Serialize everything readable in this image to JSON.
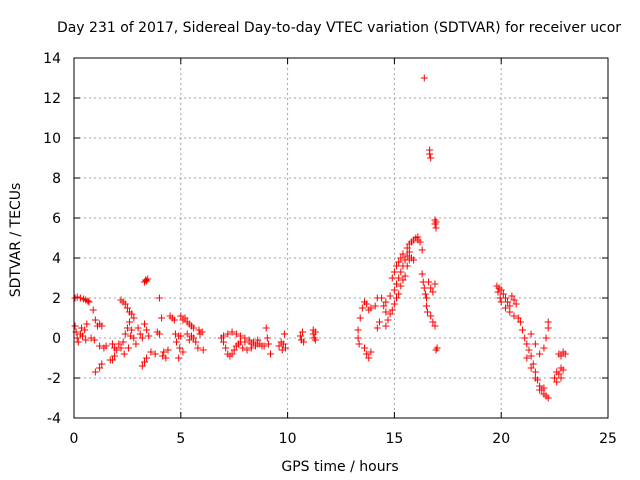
{
  "chart_data": {
    "type": "scatter",
    "title": "Day 231 of 2017, Sidereal Day-to-day VTEC variation (SDTVAR) for receiver ucor",
    "xlabel": "GPS time / hours",
    "ylabel": "SDTVAR / TECUs",
    "xlim": [
      0,
      25
    ],
    "ylim": [
      -4,
      14
    ],
    "xticks": [
      "0",
      "5",
      "10",
      "15",
      "20",
      "25"
    ],
    "yticks": [
      "-4",
      "-2",
      "0",
      "2",
      "4",
      "6",
      "8",
      "10",
      "12",
      "14"
    ],
    "grid": true,
    "marker": "+",
    "color": "#ff0000",
    "series": [
      {
        "name": "SDTVAR",
        "points": [
          [
            0.05,
            2.0
          ],
          [
            0.15,
            2.05
          ],
          [
            0.3,
            2.0
          ],
          [
            0.45,
            1.95
          ],
          [
            0.55,
            1.9
          ],
          [
            0.65,
            1.85
          ],
          [
            0.7,
            1.8
          ],
          [
            0.05,
            0.6
          ],
          [
            0.1,
            0.3
          ],
          [
            0.15,
            0.0
          ],
          [
            0.2,
            -0.2
          ],
          [
            0.3,
            0.2
          ],
          [
            0.35,
            0.5
          ],
          [
            0.4,
            0.1
          ],
          [
            0.5,
            0.4
          ],
          [
            0.6,
            0.7
          ],
          [
            0.55,
            -0.1
          ],
          [
            0.9,
            1.4
          ],
          [
            1.0,
            0.9
          ],
          [
            1.1,
            0.6
          ],
          [
            1.2,
            0.7
          ],
          [
            1.3,
            0.6
          ],
          [
            0.8,
            0.0
          ],
          [
            0.95,
            -0.1
          ],
          [
            1.0,
            -1.7
          ],
          [
            1.2,
            -1.5
          ],
          [
            1.3,
            -1.3
          ],
          [
            1.2,
            -0.4
          ],
          [
            1.4,
            -0.5
          ],
          [
            1.5,
            -0.4
          ],
          [
            1.7,
            -1.1
          ],
          [
            1.8,
            -1.1
          ],
          [
            1.9,
            -0.9
          ],
          [
            1.8,
            -0.3
          ],
          [
            1.9,
            -0.5
          ],
          [
            2.0,
            -0.6
          ],
          [
            2.1,
            -0.3
          ],
          [
            2.2,
            1.9
          ],
          [
            2.3,
            1.8
          ],
          [
            2.4,
            1.7
          ],
          [
            2.5,
            1.5
          ],
          [
            2.6,
            1.3
          ],
          [
            2.7,
            1.2
          ],
          [
            2.8,
            1.0
          ],
          [
            2.2,
            -0.5
          ],
          [
            2.3,
            -0.2
          ],
          [
            2.4,
            0.2
          ],
          [
            2.5,
            0.5
          ],
          [
            2.6,
            0.8
          ],
          [
            2.7,
            0.4
          ],
          [
            2.8,
            0.0
          ],
          [
            2.9,
            -0.3
          ],
          [
            2.35,
            -0.8
          ],
          [
            2.55,
            -0.5
          ],
          [
            2.65,
            0.1
          ],
          [
            3.0,
            0.5
          ],
          [
            3.1,
            0.2
          ],
          [
            3.2,
            0.0
          ],
          [
            3.3,
            0.7
          ],
          [
            3.4,
            0.4
          ],
          [
            3.5,
            0.1
          ],
          [
            3.3,
            2.8
          ],
          [
            3.35,
            2.9
          ],
          [
            3.4,
            2.85
          ],
          [
            3.45,
            2.95
          ],
          [
            3.2,
            -1.4
          ],
          [
            3.3,
            -1.2
          ],
          [
            3.4,
            -1.0
          ],
          [
            3.6,
            -0.7
          ],
          [
            3.8,
            -0.8
          ],
          [
            3.9,
            0.3
          ],
          [
            4.0,
            0.2
          ],
          [
            4.1,
            1.0
          ],
          [
            4.15,
            -0.9
          ],
          [
            4.2,
            -0.7
          ],
          [
            4.3,
            -1.0
          ],
          [
            4.4,
            -0.6
          ],
          [
            4.0,
            2.0
          ],
          [
            4.5,
            1.1
          ],
          [
            4.6,
            1.0
          ],
          [
            4.7,
            0.9
          ],
          [
            4.75,
            0.2
          ],
          [
            4.8,
            -0.2
          ],
          [
            4.9,
            0.1
          ],
          [
            4.95,
            -0.5
          ],
          [
            5.0,
            0.1
          ],
          [
            4.9,
            -1.0
          ],
          [
            5.1,
            -0.7
          ],
          [
            5.0,
            1.1
          ],
          [
            5.1,
            0.9
          ],
          [
            5.2,
            1.0
          ],
          [
            5.3,
            0.8
          ],
          [
            5.4,
            0.7
          ],
          [
            5.5,
            0.6
          ],
          [
            5.6,
            0.5
          ],
          [
            5.3,
            0.2
          ],
          [
            5.4,
            -0.1
          ],
          [
            5.5,
            0.1
          ],
          [
            5.6,
            0.0
          ],
          [
            5.7,
            -0.2
          ],
          [
            5.8,
            -0.5
          ],
          [
            5.85,
            0.4
          ],
          [
            5.9,
            0.2
          ],
          [
            6.0,
            0.3
          ],
          [
            6.05,
            -0.6
          ],
          [
            6.9,
            0.0
          ],
          [
            7.0,
            -0.2
          ],
          [
            7.1,
            -0.5
          ],
          [
            7.2,
            -0.8
          ],
          [
            7.3,
            -0.9
          ],
          [
            7.4,
            -0.8
          ],
          [
            7.5,
            -0.6
          ],
          [
            7.6,
            -0.4
          ],
          [
            7.7,
            -0.3
          ],
          [
            7.8,
            -0.2
          ],
          [
            7.0,
            0.1
          ],
          [
            7.2,
            0.2
          ],
          [
            7.4,
            0.3
          ],
          [
            7.6,
            0.2
          ],
          [
            7.8,
            0.1
          ],
          [
            8.0,
            0.0
          ],
          [
            8.2,
            -0.1
          ],
          [
            8.4,
            -0.2
          ],
          [
            8.6,
            -0.3
          ],
          [
            8.8,
            -0.4
          ],
          [
            7.9,
            -0.5
          ],
          [
            8.1,
            -0.6
          ],
          [
            8.3,
            -0.5
          ],
          [
            8.5,
            -0.4
          ],
          [
            8.7,
            -0.3
          ],
          [
            8.9,
            -0.4
          ],
          [
            8.0,
            -0.2
          ],
          [
            8.3,
            -0.3
          ],
          [
            8.6,
            -0.1
          ],
          [
            9.0,
            0.5
          ],
          [
            9.05,
            0.0
          ],
          [
            9.1,
            -0.3
          ],
          [
            9.2,
            -0.8
          ],
          [
            9.6,
            -0.4
          ],
          [
            9.7,
            -0.2
          ],
          [
            9.75,
            -0.6
          ],
          [
            9.8,
            -0.3
          ],
          [
            9.85,
            0.2
          ],
          [
            9.9,
            -0.5
          ],
          [
            10.6,
            0.1
          ],
          [
            10.65,
            -0.1
          ],
          [
            10.7,
            0.3
          ],
          [
            10.75,
            -0.2
          ],
          [
            11.2,
            0.4
          ],
          [
            11.2,
            0.2
          ],
          [
            11.25,
            0.0
          ],
          [
            11.3,
            -0.1
          ],
          [
            11.3,
            0.3
          ],
          [
            13.3,
            0.4
          ],
          [
            13.3,
            0.0
          ],
          [
            13.35,
            -0.3
          ],
          [
            13.4,
            1.0
          ],
          [
            13.5,
            1.5
          ],
          [
            13.6,
            1.8
          ],
          [
            13.7,
            1.7
          ],
          [
            13.8,
            1.4
          ],
          [
            13.9,
            1.5
          ],
          [
            13.6,
            -0.5
          ],
          [
            13.7,
            -0.8
          ],
          [
            13.8,
            -1.0
          ],
          [
            13.9,
            -0.7
          ],
          [
            14.1,
            1.6
          ],
          [
            14.2,
            0.5
          ],
          [
            14.3,
            0.8
          ],
          [
            14.2,
            2.0
          ],
          [
            14.4,
            2.0
          ],
          [
            14.5,
            1.6
          ],
          [
            14.6,
            1.3
          ],
          [
            14.6,
            0.6
          ],
          [
            14.7,
            0.9
          ],
          [
            14.8,
            1.2
          ],
          [
            14.9,
            1.4
          ],
          [
            15.0,
            1.7
          ],
          [
            15.1,
            2.0
          ],
          [
            15.2,
            2.2
          ],
          [
            15.3,
            2.6
          ],
          [
            15.4,
            2.9
          ],
          [
            15.5,
            3.1
          ],
          [
            14.6,
            1.8
          ],
          [
            14.8,
            2.1
          ],
          [
            15.0,
            2.4
          ],
          [
            15.1,
            2.7
          ],
          [
            15.2,
            3.0
          ],
          [
            15.3,
            3.3
          ],
          [
            15.4,
            3.6
          ],
          [
            15.5,
            3.9
          ],
          [
            15.6,
            4.1
          ],
          [
            15.7,
            4.3
          ],
          [
            14.9,
            3.0
          ],
          [
            15.0,
            3.3
          ],
          [
            15.1,
            3.6
          ],
          [
            15.2,
            3.8
          ],
          [
            15.3,
            4.0
          ],
          [
            15.4,
            4.2
          ],
          [
            15.6,
            4.5
          ],
          [
            15.7,
            4.7
          ],
          [
            15.8,
            4.8
          ],
          [
            15.9,
            4.9
          ],
          [
            16.0,
            5.0
          ],
          [
            16.1,
            5.05
          ],
          [
            15.6,
            3.6
          ],
          [
            15.7,
            3.9
          ],
          [
            15.8,
            4.0
          ],
          [
            15.9,
            3.9
          ],
          [
            16.1,
            4.9
          ],
          [
            16.2,
            4.8
          ],
          [
            16.3,
            4.4
          ],
          [
            16.3,
            3.2
          ],
          [
            16.35,
            2.8
          ],
          [
            16.4,
            2.5
          ],
          [
            16.45,
            2.2
          ],
          [
            16.5,
            2.0
          ],
          [
            16.5,
            1.6
          ],
          [
            16.55,
            1.3
          ],
          [
            16.4,
            13.0
          ],
          [
            16.65,
            9.4
          ],
          [
            16.65,
            9.2
          ],
          [
            16.7,
            9.0
          ],
          [
            16.9,
            5.9
          ],
          [
            16.9,
            5.7
          ],
          [
            16.95,
            5.5
          ],
          [
            16.95,
            5.8
          ],
          [
            16.6,
            2.8
          ],
          [
            16.7,
            2.5
          ],
          [
            16.8,
            2.3
          ],
          [
            16.7,
            1.1
          ],
          [
            16.8,
            0.8
          ],
          [
            16.9,
            0.6
          ],
          [
            16.9,
            2.7
          ],
          [
            17.0,
            -0.5
          ],
          [
            16.95,
            -0.6
          ],
          [
            19.8,
            2.6
          ],
          [
            19.85,
            2.3
          ],
          [
            19.9,
            2.5
          ],
          [
            19.95,
            2.0
          ],
          [
            20.0,
            1.8
          ],
          [
            20.0,
            2.4
          ],
          [
            20.1,
            2.2
          ],
          [
            20.2,
            2.0
          ],
          [
            20.3,
            1.8
          ],
          [
            20.4,
            1.6
          ],
          [
            20.5,
            2.1
          ],
          [
            20.6,
            1.9
          ],
          [
            20.7,
            1.7
          ],
          [
            20.2,
            1.5
          ],
          [
            20.4,
            1.3
          ],
          [
            20.6,
            1.1
          ],
          [
            20.8,
            1.0
          ],
          [
            20.9,
            0.8
          ],
          [
            21.0,
            0.4
          ],
          [
            21.1,
            0.0
          ],
          [
            21.2,
            -0.3
          ],
          [
            21.3,
            -0.6
          ],
          [
            21.4,
            -0.9
          ],
          [
            21.5,
            -1.3
          ],
          [
            21.6,
            -1.7
          ],
          [
            21.7,
            -2.1
          ],
          [
            21.8,
            -2.4
          ],
          [
            21.9,
            -2.6
          ],
          [
            22.0,
            -2.8
          ],
          [
            22.1,
            -2.9
          ],
          [
            22.2,
            -3.0
          ],
          [
            21.2,
            -1.0
          ],
          [
            21.4,
            -1.5
          ],
          [
            21.6,
            -2.0
          ],
          [
            21.8,
            -2.6
          ],
          [
            22.0,
            -2.5
          ],
          [
            21.4,
            0.2
          ],
          [
            21.6,
            -0.3
          ],
          [
            21.8,
            -0.8
          ],
          [
            22.0,
            -0.5
          ],
          [
            22.1,
            0.0
          ],
          [
            22.2,
            0.5
          ],
          [
            22.2,
            0.8
          ],
          [
            22.5,
            -2.0
          ],
          [
            22.6,
            -2.2
          ],
          [
            22.7,
            -1.8
          ],
          [
            22.8,
            -1.5
          ],
          [
            22.9,
            -1.6
          ],
          [
            22.6,
            -1.7
          ],
          [
            22.8,
            -2.0
          ],
          [
            22.7,
            -0.8
          ],
          [
            22.8,
            -0.9
          ],
          [
            22.9,
            -0.7
          ],
          [
            23.0,
            -0.8
          ]
        ]
      }
    ]
  }
}
